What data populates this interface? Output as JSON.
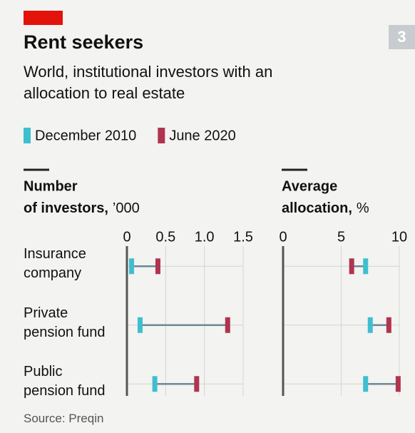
{
  "header": {
    "title": "Rent seekers",
    "subtitle": "World, institutional investors with an allocation to real estate",
    "badge": "3"
  },
  "source": "Source: Preqin",
  "chart_data": [
    {
      "type": "dumbbell",
      "axis_title": "Number of investors,",
      "axis_unit": "’000",
      "categories": [
        "Insurance company",
        "Private pension fund",
        "Public pension fund"
      ],
      "series": [
        {
          "name": "December 2010",
          "color": "#3ebfd0",
          "values": [
            0.06,
            0.17,
            0.36
          ]
        },
        {
          "name": "June 2020",
          "color": "#b0344f",
          "values": [
            0.4,
            1.3,
            0.9
          ]
        }
      ],
      "xlim": [
        0,
        1.5
      ],
      "xticks": [
        0,
        0.5,
        {
          "value": 1,
          "label": "1.0"
        },
        1.5
      ],
      "grid": true
    },
    {
      "type": "dumbbell",
      "axis_title": "Average allocation,",
      "axis_unit": "%",
      "series": [
        {
          "color": "#3ebfd0",
          "values": [
            7.1,
            7.5,
            7.1
          ]
        },
        {
          "color": "#b0344f",
          "values": [
            5.9,
            9.1,
            9.9
          ]
        }
      ],
      "xlim": [
        0,
        10
      ],
      "xticks": [
        0,
        5,
        10
      ],
      "grid": true
    }
  ]
}
